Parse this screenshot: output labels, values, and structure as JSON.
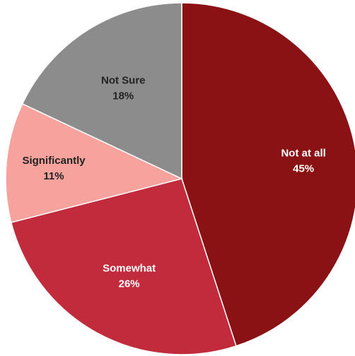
{
  "chart_data": {
    "type": "pie",
    "title": "",
    "start_angle_deg": 0,
    "direction": "clockwise",
    "slices": [
      {
        "label": "Not at all",
        "value": 45,
        "value_label": "45%",
        "color": "#8b1214",
        "text_color": "#ffffff"
      },
      {
        "label": "Somewhat",
        "value": 26,
        "value_label": "26%",
        "color": "#c12b3c",
        "text_color": "#ffffff"
      },
      {
        "label": "Significantly",
        "value": 11,
        "value_label": "11%",
        "color": "#f7a39d",
        "text_color": "#222222"
      },
      {
        "label": "Not Sure",
        "value": 18,
        "value_label": "18%",
        "color": "#8c8c8c",
        "text_color": "#222222"
      }
    ]
  }
}
